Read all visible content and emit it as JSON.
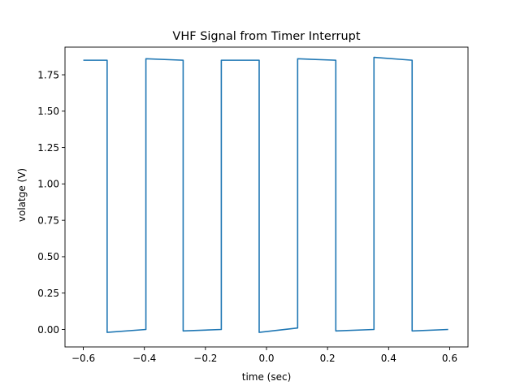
{
  "chart_data": {
    "type": "line",
    "title": "VHF Signal from Timer Interrupt",
    "xlabel": "time (sec)",
    "ylabel": "volatge (V)",
    "xlim": [
      -0.66,
      0.66
    ],
    "ylim": [
      -0.12,
      1.94
    ],
    "grid": false,
    "legend": "none",
    "xticks": [
      -0.6,
      -0.4,
      -0.2,
      0.0,
      0.2,
      0.4,
      0.6
    ],
    "xtick_labels": [
      "−0.6",
      "−0.4",
      "−0.2",
      "0.0",
      "0.2",
      "0.4",
      "0.6"
    ],
    "yticks": [
      0.0,
      0.25,
      0.5,
      0.75,
      1.0,
      1.25,
      1.5,
      1.75
    ],
    "ytick_labels": [
      "0.00",
      "0.25",
      "0.50",
      "0.75",
      "1.00",
      "1.25",
      "1.50",
      "1.75"
    ],
    "series": [
      {
        "color": "#1f77b4",
        "x": [
          -0.6,
          -0.522,
          -0.522,
          -0.395,
          -0.395,
          -0.273,
          -0.273,
          -0.148,
          -0.148,
          -0.024,
          -0.024,
          0.102,
          0.102,
          0.227,
          0.227,
          0.352,
          0.352,
          0.477,
          0.477,
          0.595
        ],
        "y": [
          1.85,
          1.85,
          -0.02,
          0.0,
          1.86,
          1.85,
          -0.01,
          0.0,
          1.85,
          1.85,
          -0.02,
          0.01,
          1.86,
          1.85,
          -0.01,
          0.0,
          1.87,
          1.85,
          -0.01,
          0.0
        ]
      }
    ]
  }
}
